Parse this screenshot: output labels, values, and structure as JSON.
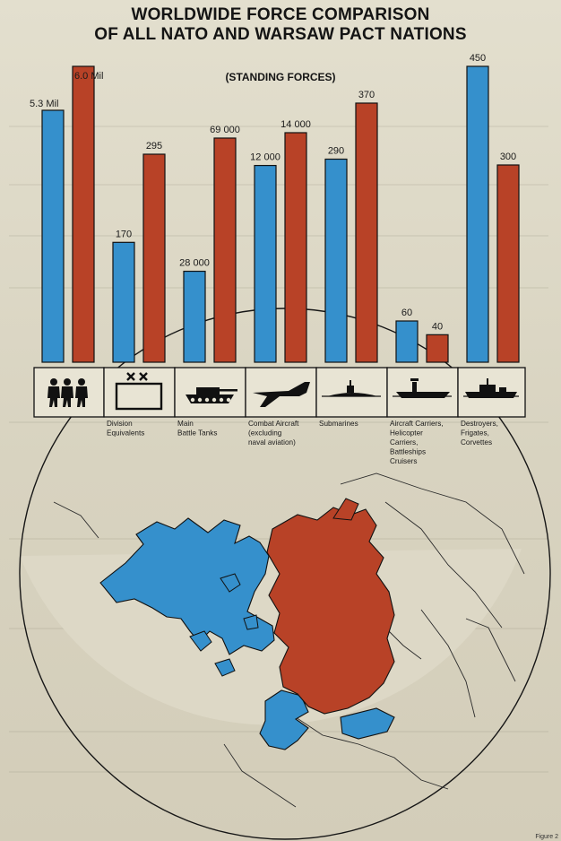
{
  "chart_data": {
    "type": "bar",
    "title": "WORLDWIDE FORCE COMPARISON OF ALL NATO AND WARSAW PACT NATIONS",
    "title_lines": [
      "WORLDWIDE FORCE COMPARISON",
      "OF ALL NATO AND WARSAW PACT NATIONS"
    ],
    "subtitle": "(STANDING FORCES)",
    "categories": [
      "Division Equivalents",
      "Main Battle Tanks",
      "Combat Aircraft (excluding naval aviation)",
      "Submarines",
      "Aircraft Carriers, Helicopter Carriers, Battleships Cruisers",
      "Destroyers, Frigates, Corvettes"
    ],
    "category_label_lines": [
      [
        "Division",
        "Equivalents"
      ],
      [
        "Main",
        "Battle Tanks"
      ],
      [
        "Combat Aircraft",
        "(excluding",
        "naval aviation)"
      ],
      [
        "Submarines"
      ],
      [
        "Aircraft Carriers,",
        "Helicopter",
        "Carriers,",
        "Battleships",
        "Cruisers"
      ],
      [
        "Destroyers,",
        "Frigates,",
        "Corvettes"
      ]
    ],
    "first_group_values": [
      5.3,
      6.0
    ],
    "first_group_labels": [
      "5.3 Mil",
      "6.0 Mil"
    ],
    "series": [
      {
        "color": "#3590cc",
        "values": [
          170,
          28000,
          12000,
          290,
          60,
          450
        ],
        "labels": [
          "170",
          "28 000",
          "12 000",
          "290",
          "60",
          "450"
        ]
      },
      {
        "color": "#b84227",
        "values": [
          295,
          69000,
          14000,
          370,
          40,
          300
        ],
        "labels": [
          "295",
          "69 000",
          "14 000",
          "370",
          "40",
          "300"
        ]
      }
    ],
    "panel_icons": [
      "soldiers-icon",
      "division-symbol-icon",
      "tank-icon",
      "jet-aircraft-icon",
      "submarine-icon",
      "aircraft-carrier-icon",
      "destroyer-icon"
    ],
    "map_colors": {
      "nato": "#3590cc",
      "warsaw_pact": "#b84227"
    },
    "legend": "none",
    "grid": false
  },
  "figure_label": "Figure 2"
}
